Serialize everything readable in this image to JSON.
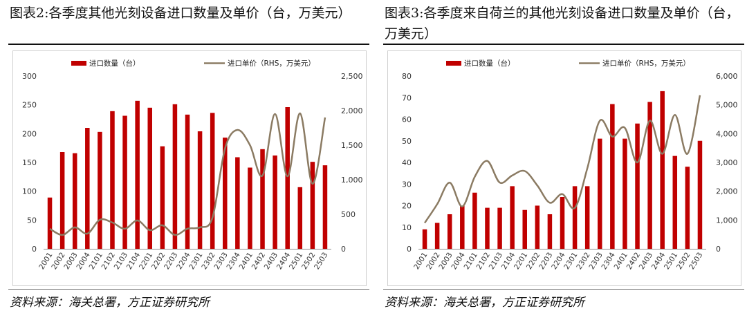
{
  "colors": {
    "bar": "#c00000",
    "line": "#8b7b63",
    "axis": "#8c8c8c"
  },
  "charts": [
    {
      "title": "图表2:各季度其他光刻设备进口数量及单价（台，万美元）",
      "source": "资料来源：海关总署，方正证券研究所",
      "chart_data": {
        "type": "bar",
        "categories": [
          "2001",
          "2002",
          "2003",
          "2004",
          "2101",
          "2102",
          "2103",
          "2104",
          "2201",
          "2202",
          "2203",
          "2204",
          "2301",
          "2302",
          "2303",
          "2304",
          "2401",
          "2402",
          "2403",
          "2404",
          "2501",
          "2502",
          "2503"
        ],
        "series": [
          {
            "name": "进口数量（台）",
            "type": "bar",
            "axis": "left",
            "values": [
              89,
              168,
              166,
              210,
              203,
              239,
              231,
              257,
              245,
              178,
              251,
              233,
              204,
              236,
              193,
              159,
              141,
              173,
              162,
              246,
              107,
              151,
              145
            ]
          },
          {
            "name": "进口单价（RHS，万美元）",
            "type": "line",
            "axis": "right",
            "values": [
              290,
              200,
              310,
              220,
              420,
              380,
              290,
              410,
              270,
              340,
              200,
              290,
              310,
              450,
              1450,
              1720,
              1500,
              1060,
              1950,
              1050,
              1960,
              940,
              1900
            ]
          }
        ],
        "ylim": [
          0,
          300
        ],
        "y_ticks": [
          "0",
          "50",
          "100",
          "150",
          "200",
          "250",
          "300"
        ],
        "y2lim": [
          0,
          2500
        ],
        "y2_ticks": [
          "0",
          "500",
          "1,000",
          "1,500",
          "2,000",
          "2,500"
        ],
        "legend": "top"
      }
    },
    {
      "title": "图表3:各季度来自荷兰的其他光刻设备进口数量及单价（台，万美元）",
      "source": "资料来源：海关总署，方正证券研究所",
      "chart_data": {
        "type": "bar",
        "categories": [
          "2001",
          "2002",
          "2003",
          "2004",
          "2101",
          "2102",
          "2103",
          "2104",
          "2201",
          "2202",
          "2203",
          "2204",
          "2301",
          "2302",
          "2303",
          "2304",
          "2401",
          "2402",
          "2403",
          "2404",
          "2501",
          "2502",
          "2503"
        ],
        "series": [
          {
            "name": "进口数量（台）",
            "type": "bar",
            "axis": "left",
            "values": [
              9,
              12,
              16,
              20,
              26,
              19,
              19,
              29,
              18,
              20,
              16,
              24,
              29,
              29,
              51,
              67,
              51,
              58,
              68,
              73,
              43,
              38,
              50
            ]
          },
          {
            "name": "进口单价（RHS，万美元）",
            "type": "line",
            "axis": "right",
            "values": [
              900,
              1550,
              2300,
              1470,
              2500,
              3050,
              2300,
              2550,
              2700,
              2200,
              1600,
              1900,
              1420,
              2800,
              4450,
              3900,
              4200,
              3000,
              4450,
              3300,
              4650,
              3300,
              5330
            ]
          }
        ],
        "ylim": [
          0,
          80
        ],
        "y_ticks": [
          "0",
          "10",
          "20",
          "30",
          "40",
          "50",
          "60",
          "70",
          "80"
        ],
        "y2lim": [
          0,
          6000
        ],
        "y2_ticks": [
          "0",
          "1,000",
          "2,000",
          "3,000",
          "4,000",
          "5,000",
          "6,000"
        ],
        "legend": "top"
      }
    }
  ]
}
